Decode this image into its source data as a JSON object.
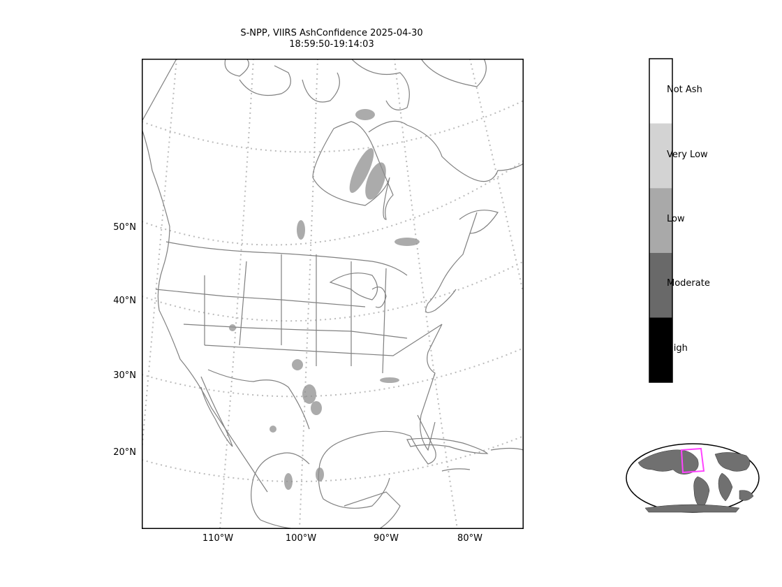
{
  "title": {
    "line1": "S-NPP, VIIRS AshConfidence 2025-04-30",
    "line2": "18:59:50-19:14:03"
  },
  "map": {
    "latitude_labels": [
      "50°N",
      "40°N",
      "30°N",
      "20°N"
    ],
    "longitude_labels": [
      "110°W",
      "100°W",
      "90°W",
      "80°W"
    ],
    "gridline_color": "#bbbbbb",
    "coastline_color": "#808080",
    "ash_color": "#909090"
  },
  "colorbar": {
    "categories": [
      {
        "label": "Not Ash",
        "color": "#ffffff"
      },
      {
        "label": "Very Low",
        "color": "#d3d3d3"
      },
      {
        "label": "Low",
        "color": "#a9a9a9"
      },
      {
        "label": "Moderate",
        "color": "#696969"
      },
      {
        "label": "High",
        "color": "#000000"
      }
    ]
  },
  "inset": {
    "highlight_color": "#ff44ff",
    "land_color": "#707070"
  }
}
